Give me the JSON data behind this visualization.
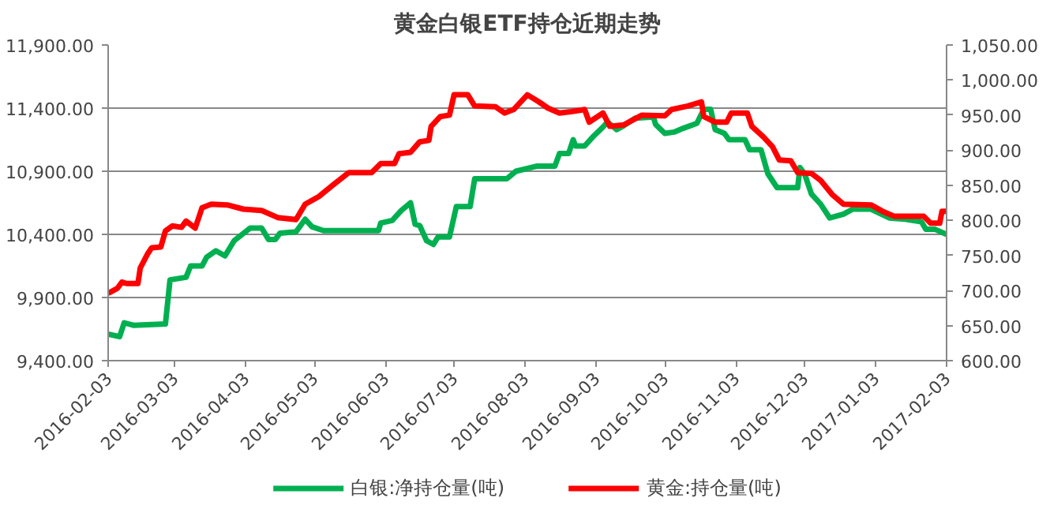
{
  "chart_data": {
    "type": "line",
    "title": "黄金白银ETF持仓近期走势",
    "xlim": [
      "2016-02-03",
      "2017-02-03"
    ],
    "xticks": [
      "2016-02-03",
      "2016-03-03",
      "2016-04-03",
      "2016-05-03",
      "2016-06-03",
      "2016-07-03",
      "2016-08-03",
      "2016-09-03",
      "2016-10-03",
      "2016-11-03",
      "2016-12-03",
      "2017-01-03",
      "2017-02-03"
    ],
    "ylim": [
      9400,
      11900
    ],
    "yticks": [
      {
        "value": 9400,
        "label": "9,400.00"
      },
      {
        "value": 9900,
        "label": "9,900.00"
      },
      {
        "value": 10400,
        "label": "10,400.00"
      },
      {
        "value": 10900,
        "label": "10,900.00"
      },
      {
        "value": 11400,
        "label": "11,400.00"
      },
      {
        "value": 11900,
        "label": "11,900.00"
      }
    ],
    "y2lim": [
      600,
      1050
    ],
    "y2ticks": [
      {
        "value": 600,
        "label": "600.00"
      },
      {
        "value": 650,
        "label": "650.00"
      },
      {
        "value": 700,
        "label": "700.00"
      },
      {
        "value": 750,
        "label": "750.00"
      },
      {
        "value": 800,
        "label": "800.00"
      },
      {
        "value": 850,
        "label": "850.00"
      },
      {
        "value": 900,
        "label": "900.00"
      },
      {
        "value": 950,
        "label": "950.00"
      },
      {
        "value": 1000,
        "label": "1,000.00"
      },
      {
        "value": 1050,
        "label": "1,050.00"
      }
    ],
    "grid": "y",
    "legend": "bottom",
    "line_style": "solid",
    "marker": "none",
    "series": [
      {
        "name": "白银:净持仓量(吨)",
        "color": "#00b050",
        "x": [
          "2016-02-03",
          "2016-02-08",
          "2016-02-10",
          "2016-02-14",
          "2016-02-28",
          "2016-03-01",
          "2016-03-08",
          "2016-03-10",
          "2016-03-15",
          "2016-03-17",
          "2016-03-21",
          "2016-03-25",
          "2016-03-29",
          "2016-04-05",
          "2016-04-10",
          "2016-04-13",
          "2016-04-16",
          "2016-04-18",
          "2016-04-25",
          "2016-04-29",
          "2016-05-02",
          "2016-05-07",
          "2016-05-31",
          "2016-06-01",
          "2016-06-06",
          "2016-06-10",
          "2016-06-14",
          "2016-06-16",
          "2016-06-18",
          "2016-06-21",
          "2016-06-24",
          "2016-06-26",
          "2016-07-01",
          "2016-07-04",
          "2016-07-10",
          "2016-07-12",
          "2016-07-26",
          "2016-07-30",
          "2016-08-08",
          "2016-08-16",
          "2016-08-18",
          "2016-08-22",
          "2016-08-24",
          "2016-08-25",
          "2016-08-29",
          "2016-09-02",
          "2016-09-06",
          "2016-09-08",
          "2016-09-12",
          "2016-09-15",
          "2016-09-20",
          "2016-09-28",
          "2016-09-29",
          "2016-10-03",
          "2016-10-07",
          "2016-10-11",
          "2016-10-17",
          "2016-10-20",
          "2016-10-23",
          "2016-10-25",
          "2016-10-29",
          "2016-10-31",
          "2016-11-07",
          "2016-11-09",
          "2016-11-14",
          "2016-11-17",
          "2016-11-21",
          "2016-11-30",
          "2016-12-01",
          "2016-12-03",
          "2016-12-06",
          "2016-12-10",
          "2016-12-14",
          "2016-12-20",
          "2016-12-24",
          "2017-01-01",
          "2017-01-09",
          "2017-01-16",
          "2017-01-23",
          "2017-01-25",
          "2017-01-29",
          "2017-02-03"
        ],
        "values": [
          9610,
          9590,
          9700,
          9680,
          9690,
          10040,
          10060,
          10150,
          10150,
          10220,
          10270,
          10230,
          10350,
          10450,
          10450,
          10360,
          10360,
          10410,
          10420,
          10520,
          10460,
          10430,
          10430,
          10490,
          10510,
          10590,
          10650,
          10480,
          10470,
          10350,
          10320,
          10380,
          10380,
          10620,
          10620,
          10840,
          10840,
          10900,
          10940,
          10940,
          11040,
          11040,
          11150,
          11100,
          11100,
          11180,
          11250,
          11290,
          11230,
          11260,
          11320,
          11330,
          11270,
          11200,
          11210,
          11240,
          11280,
          11390,
          11390,
          11230,
          11200,
          11150,
          11150,
          11070,
          11070,
          10880,
          10770,
          10770,
          10930,
          10880,
          10720,
          10640,
          10530,
          10560,
          10600,
          10600,
          10530,
          10520,
          10500,
          10440,
          10440,
          10400
        ]
      },
      {
        "name": "黄金:持仓量(吨)",
        "color": "#ff0000",
        "axis": "y2",
        "x": [
          "2016-02-03",
          "2016-02-07",
          "2016-02-09",
          "2016-02-11",
          "2016-02-16",
          "2016-02-17",
          "2016-02-20",
          "2016-02-22",
          "2016-02-26",
          "2016-02-28",
          "2016-03-02",
          "2016-03-06",
          "2016-03-08",
          "2016-03-12",
          "2016-03-15",
          "2016-03-19",
          "2016-03-26",
          "2016-04-02",
          "2016-04-10",
          "2016-04-17",
          "2016-04-25",
          "2016-04-29",
          "2016-05-05",
          "2016-05-11",
          "2016-05-18",
          "2016-05-28",
          "2016-06-01",
          "2016-06-07",
          "2016-06-09",
          "2016-06-14",
          "2016-06-18",
          "2016-06-22",
          "2016-06-23",
          "2016-06-27",
          "2016-07-01",
          "2016-07-03",
          "2016-07-09",
          "2016-07-12",
          "2016-07-21",
          "2016-07-25",
          "2016-07-29",
          "2016-08-04",
          "2016-08-09",
          "2016-08-13",
          "2016-08-18",
          "2016-08-23",
          "2016-08-29",
          "2016-08-31",
          "2016-09-06",
          "2016-09-09",
          "2016-09-15",
          "2016-09-23",
          "2016-10-03",
          "2016-10-06",
          "2016-10-13",
          "2016-10-19",
          "2016-10-20",
          "2016-10-25",
          "2016-10-30",
          "2016-11-01",
          "2016-11-08",
          "2016-11-10",
          "2016-11-15",
          "2016-11-19",
          "2016-11-22",
          "2016-11-27",
          "2016-11-30",
          "2016-12-06",
          "2016-12-10",
          "2016-12-15",
          "2016-12-20",
          "2017-01-01",
          "2017-01-06",
          "2017-01-11",
          "2017-01-24",
          "2017-01-27",
          "2017-01-31",
          "2017-02-01",
          "2017-02-03"
        ],
        "values": [
          696,
          703,
          712,
          710,
          710,
          732,
          751,
          761,
          762,
          785,
          792,
          790,
          799,
          789,
          818,
          823,
          822,
          816,
          814,
          804,
          801,
          823,
          834,
          850,
          868,
          868,
          881,
          881,
          895,
          897,
          912,
          914,
          934,
          948,
          950,
          979,
          979,
          963,
          962,
          953,
          958,
          979,
          969,
          960,
          953,
          955,
          958,
          940,
          953,
          934,
          936,
          950,
          949,
          958,
          963,
          969,
          948,
          940,
          940,
          953,
          953,
          934,
          919,
          905,
          886,
          885,
          868,
          867,
          857,
          837,
          823,
          822,
          813,
          806,
          806,
          796,
          796,
          813,
          813
        ]
      }
    ]
  }
}
